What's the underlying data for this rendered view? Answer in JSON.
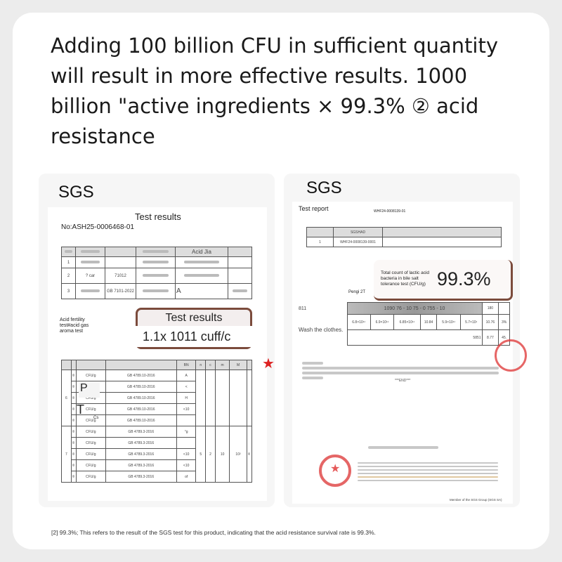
{
  "headline": "Adding 100 billion CFU in sufficient quantity will result in more effective results. 1000 billion \"active ingredients × 99.3% ② acid resistance",
  "left": {
    "brand": "SGS",
    "doc_title": "Test results",
    "report_no": "No:ASH25-0006468-01",
    "table1": {
      "header_col5": "Acid Jia",
      "rows": [
        {
          "no": "1"
        },
        {
          "no": "2",
          "item": "? car",
          "method": "71012"
        },
        {
          "no": "3",
          "method": "GB 7101-2022",
          "result": "A"
        }
      ]
    },
    "acid_label": "Acid fertility test#acid gas aroma test",
    "callout": {
      "title": "Test results",
      "value": "1.1x 1011 cuff/c"
    },
    "table2": {
      "headers": [
        "",
        "",
        "",
        "",
        "BN",
        "n",
        "c",
        "m",
        "M",
        ""
      ],
      "unit": "CFU/g",
      "methods": [
        "GB 4789.10-2016",
        "GB 4789.10-2016",
        "GB 4789.10-2016",
        "GB 4789.10-2016",
        "GB 4789.10-2016",
        "GB 4789.3-2016",
        "GB 4789.3-2016",
        "GB 4789.3-2016",
        "GB 4789.3-2016",
        "GB 4789.3-2016"
      ],
      "bn": [
        "A",
        "<",
        "H",
        "<10",
        "",
        "°g",
        "",
        "<10",
        "<10",
        "of"
      ],
      "row6_no": "6",
      "row7_no": "7",
      "row7_vals": [
        "5",
        "2",
        "10",
        "10²"
      ],
      "overlay_p": "P",
      "overlay_t": "T",
      "overlay_cs": "Cs"
    }
  },
  "right": {
    "brand": "SGS",
    "doc_title": "Test report",
    "report_no": "WHF24-0008139-01",
    "sample_table": {
      "header": "SGSHAD",
      "row_no": "1",
      "sample_id": "WHF24-0008139-0001"
    },
    "callout": {
      "label": "Total count of lactic acid bacteria in bile salt tolerance test (CFU/g)",
      "value": "99.3%"
    },
    "data": {
      "pengi": "Pengi 2T",
      "row1": {
        "label": "811",
        "range": "1090 76 - 10 75 - 0 755 - 10",
        "end": "180"
      },
      "row2": {
        "label": "Wash the clothes.",
        "vals": [
          "6.8×10¹¹",
          "6.9×10¹¹",
          "6.85×10¹¹",
          "10.84",
          "5.9×10¹¹",
          "5.7×10¹",
          "5",
          "10.76",
          "3%"
        ]
      },
      "row3": {
        "vals": [
          "5851",
          "8.77",
          "45."
        ]
      }
    },
    "end_mark": "***END***",
    "footer": "Member of the SGS Group (SGS SA)"
  },
  "footnote": "[2] 99.3%; This refers to the result of the SGS test for this product, indicating that the acid resistance survival rate is 99.3%.",
  "colors": {
    "callout_border": "#7b4b3c",
    "stamp": "#d33333"
  }
}
